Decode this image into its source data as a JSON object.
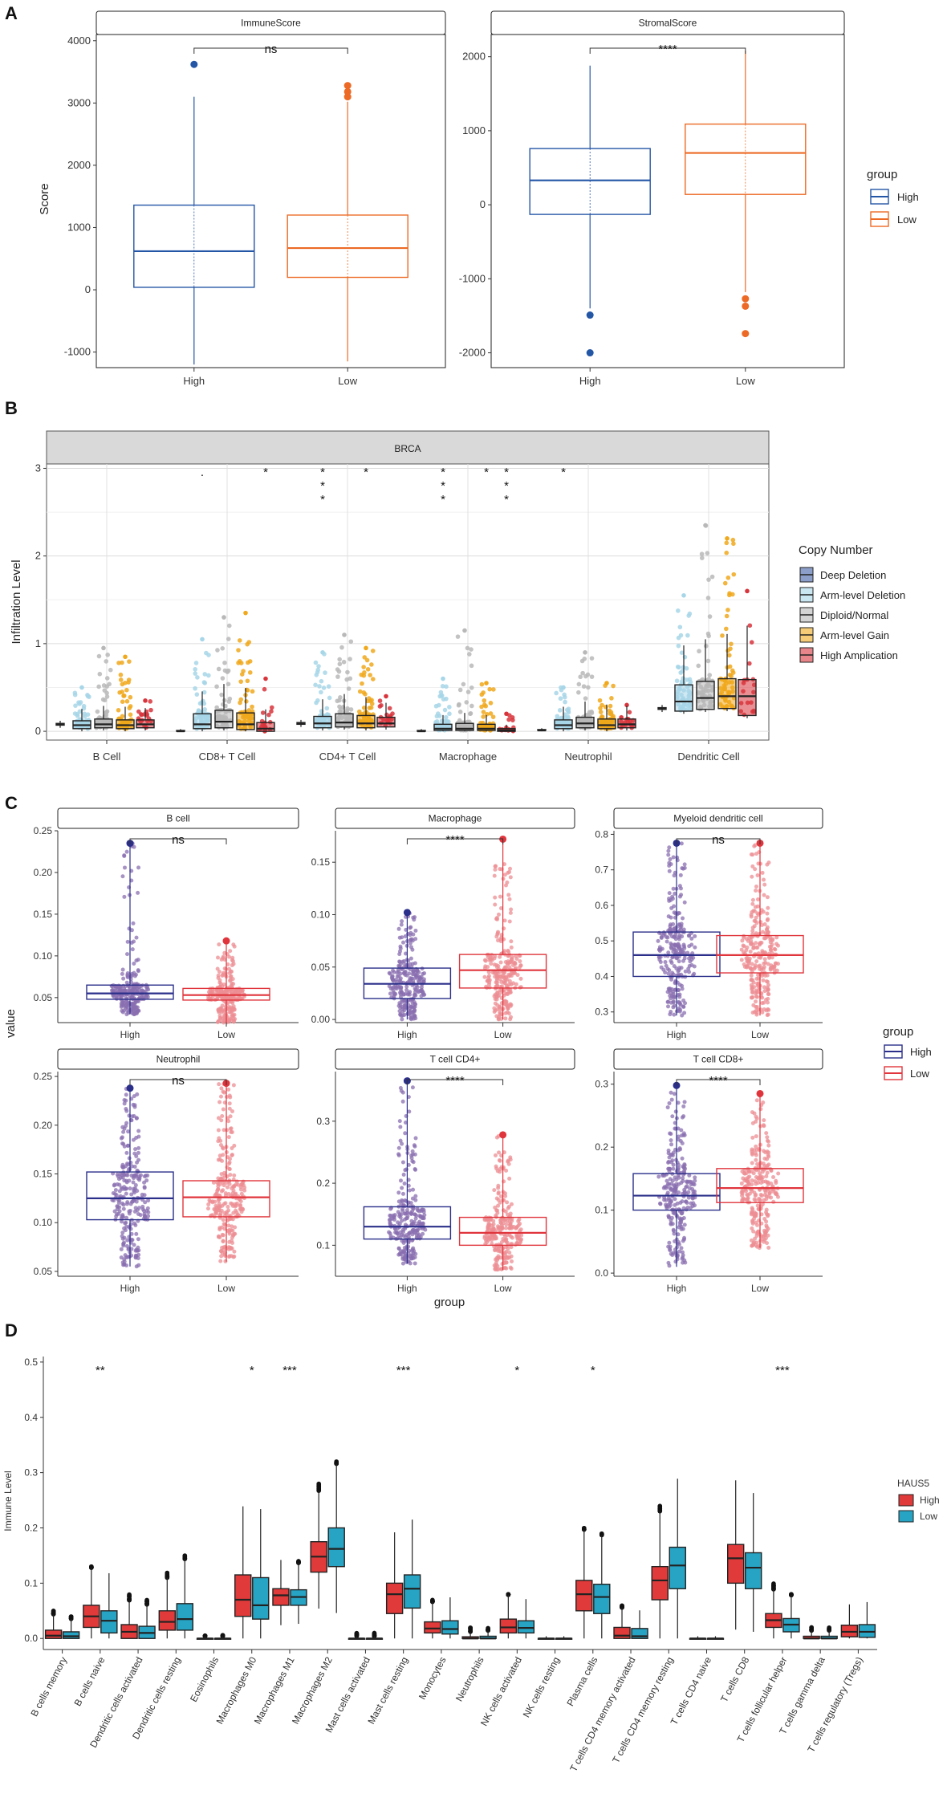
{
  "panels": {
    "a": "A",
    "b": "B",
    "c": "C",
    "d": "D"
  },
  "colors": {
    "high_a": "#2456a6",
    "low_a": "#ec6a25",
    "high_c": "#2b2f8a",
    "low_c": "#e0353c",
    "high_d": "#e03a3a",
    "low_d": "#27a4c4",
    "deep_deletion": "#3f5fa6",
    "arm_level_deletion": "#a7d6e8",
    "diploid_normal": "#b8b8b8",
    "arm_level_gain": "#f0a81c",
    "high_amplication": "#d8343c"
  },
  "panelA": {
    "y_title": "Score",
    "legend_title": "group",
    "legend_items": [
      "High",
      "Low"
    ],
    "facets": [
      {
        "title": "ImmuneScore",
        "sig": "ns",
        "ylim": [
          -1250,
          4100
        ],
        "ticks": [
          "-1000",
          "0",
          "1000",
          "2000",
          "3000",
          "4000"
        ],
        "tick_values": [
          -1000,
          0,
          1000,
          2000,
          3000,
          4000
        ],
        "categories": [
          "High",
          "Low"
        ]
      },
      {
        "title": "StromalScore",
        "sig": "****",
        "ylim": [
          -2200,
          2300
        ],
        "ticks": [
          "-2000",
          "-1000",
          "0",
          "1000",
          "2000"
        ],
        "tick_values": [
          -2000,
          -1000,
          0,
          1000,
          2000
        ],
        "categories": [
          "High",
          "Low"
        ]
      }
    ]
  },
  "panelB": {
    "facet_title": "BRCA",
    "y_title": "Infiltration Level",
    "ylim": [
      -0.1,
      3.05
    ],
    "ticks": [
      "0",
      "1",
      "2",
      "3"
    ],
    "tick_values": [
      0,
      1,
      2,
      3
    ],
    "categories": [
      "B Cell",
      "CD8+ T Cell",
      "CD4+ T Cell",
      "Macrophage",
      "Neutrophil",
      "Dendritic Cell"
    ],
    "legend_title": "Copy Number",
    "legend_items": [
      "Deep Deletion",
      "Arm-level Deletion",
      "Diploid/Normal",
      "Arm-level Gain",
      "High Amplication"
    ],
    "sig_marks": [
      {
        "cat": 1,
        "slot": 1,
        "text": "."
      },
      {
        "cat": 1,
        "slot": 4,
        "text": "*"
      },
      {
        "cat": 2,
        "slot": 1,
        "text": "*\n*\n*"
      },
      {
        "cat": 2,
        "slot": 3,
        "text": "*"
      },
      {
        "cat": 3,
        "slot": 1,
        "text": "*\n*\n*"
      },
      {
        "cat": 3,
        "slot": 3,
        "text": "*"
      },
      {
        "cat": 3,
        "slot": 4,
        "text": "*\n*\n*"
      },
      {
        "cat": 4,
        "slot": 1,
        "text": "*"
      }
    ]
  },
  "panelC": {
    "y_title": "value",
    "x_title": "group",
    "legend_title": "group",
    "legend_items": [
      "High",
      "Low"
    ],
    "categories": [
      "High",
      "Low"
    ],
    "facets": [
      {
        "title": "B cell",
        "sig": "ns",
        "ylim": [
          0.02,
          0.25
        ],
        "ticks": [
          "0.05",
          "0.10",
          "0.15",
          "0.20",
          "0.25"
        ],
        "tick_values": [
          0.05,
          0.1,
          0.15,
          0.2,
          0.25
        ]
      },
      {
        "title": "Macrophage",
        "sig": "****",
        "ylim": [
          -0.003,
          0.18
        ],
        "ticks": [
          "0.00",
          "0.05",
          "0.10",
          "0.15"
        ],
        "tick_values": [
          0.0,
          0.05,
          0.1,
          0.15
        ]
      },
      {
        "title": "Myeloid dendritic cell",
        "sig": "ns",
        "ylim": [
          0.27,
          0.81
        ],
        "ticks": [
          "0.3",
          "0.4",
          "0.5",
          "0.6",
          "0.7",
          "0.8"
        ],
        "tick_values": [
          0.3,
          0.4,
          0.5,
          0.6,
          0.7,
          0.8
        ]
      },
      {
        "title": "Neutrophil",
        "sig": "ns",
        "ylim": [
          0.045,
          0.255
        ],
        "ticks": [
          "0.05",
          "0.10",
          "0.15",
          "0.20",
          "0.25"
        ],
        "tick_values": [
          0.05,
          0.1,
          0.15,
          0.2,
          0.25
        ]
      },
      {
        "title": "T cell CD4+",
        "sig": "****",
        "ylim": [
          0.05,
          0.38
        ],
        "ticks": [
          "0.1",
          "0.2",
          "0.3"
        ],
        "tick_values": [
          0.1,
          0.2,
          0.3
        ]
      },
      {
        "title": "T cell CD8+",
        "sig": "****",
        "ylim": [
          -0.005,
          0.32
        ],
        "ticks": [
          "0.0",
          "0.1",
          "0.2",
          "0.3"
        ],
        "tick_values": [
          0.0,
          0.1,
          0.2,
          0.3
        ]
      }
    ]
  },
  "panelD": {
    "y_title": "Immune Level",
    "ylim": [
      -0.02,
      0.51
    ],
    "ticks": [
      "0.0",
      "0.1",
      "0.2",
      "0.3",
      "0.4",
      "0.5"
    ],
    "tick_values": [
      0.0,
      0.1,
      0.2,
      0.3,
      0.4,
      0.5
    ],
    "legend_title": "HAUS5",
    "legend_items": [
      "High",
      "Low"
    ],
    "categories": [
      "B cells memory",
      "B cells naive",
      "Dendritic cells activated",
      "Dendritic cells resting",
      "Eosinophils",
      "Macrophages M0",
      "Macrophages M1",
      "Macrophages M2",
      "Mast cells activated",
      "Mast cells resting",
      "Monocytes",
      "Neutrophils",
      "NK cells activated",
      "NK cells resting",
      "Plasma cells",
      "T cells CD4 memory activated",
      "T cells CD4 memory resting",
      "T cells CD4 naive",
      "T cells CD8",
      "T cells follicular helper",
      "T cells gamma delta",
      "T cells regulatory (Tregs)"
    ],
    "sig": [
      "",
      "**",
      "",
      "",
      "",
      "*",
      "***",
      "",
      "",
      "***",
      "",
      "",
      "*",
      "",
      "*",
      "",
      "",
      "",
      "",
      "***",
      "",
      ""
    ]
  },
  "chart_data": [
    {
      "type": "box",
      "panel": "A",
      "title": "ImmuneScore",
      "ylabel": "Score",
      "xlabel": "",
      "categories": [
        "High",
        "Low"
      ],
      "ylim": [
        -1250,
        4100
      ],
      "significance": "ns",
      "series": [
        {
          "name": "High",
          "min": -1200,
          "q1": 40,
          "median": 620,
          "q3": 1360,
          "max": 3100,
          "outliers": [
            3620
          ]
        },
        {
          "name": "Low",
          "min": -1150,
          "q1": 200,
          "median": 670,
          "q3": 1200,
          "max": 3020,
          "outliers": [
            3100,
            3180,
            3280
          ]
        }
      ]
    },
    {
      "type": "box",
      "panel": "A",
      "title": "StromalScore",
      "ylabel": "",
      "xlabel": "",
      "categories": [
        "High",
        "Low"
      ],
      "ylim": [
        -2200,
        2300
      ],
      "significance": "****",
      "series": [
        {
          "name": "High",
          "min": -1400,
          "q1": -130,
          "median": 330,
          "q3": 760,
          "max": 1880,
          "outliers": [
            -1490,
            -2000
          ]
        },
        {
          "name": "Low",
          "min": -1180,
          "q1": 140,
          "median": 700,
          "q3": 1090,
          "max": 2080,
          "outliers": [
            -1270,
            -1370,
            -1740
          ]
        }
      ]
    },
    {
      "type": "box",
      "panel": "B",
      "title": "BRCA",
      "ylabel": "Infiltration Level",
      "categories": [
        "B Cell",
        "CD8+ T Cell",
        "CD4+ T Cell",
        "Macrophage",
        "Neutrophil",
        "Dendritic Cell"
      ],
      "ylim": [
        -0.1,
        3.05
      ],
      "series": [
        {
          "name": "Deep Deletion",
          "q1": [
            0.07,
            0.0,
            0.08,
            0.0,
            0.01,
            0.25
          ],
          "median": [
            0.08,
            0.0,
            0.09,
            0.0,
            0.01,
            0.26
          ],
          "q3": [
            0.09,
            0.01,
            0.1,
            0.01,
            0.02,
            0.27
          ],
          "max": [
            0.09,
            0.01,
            0.1,
            0.01,
            0.02,
            0.27
          ]
        },
        {
          "name": "Arm-level Deletion",
          "q1": [
            0.03,
            0.03,
            0.04,
            0.01,
            0.03,
            0.23
          ],
          "median": [
            0.07,
            0.08,
            0.09,
            0.03,
            0.07,
            0.34
          ],
          "q3": [
            0.12,
            0.2,
            0.17,
            0.08,
            0.13,
            0.53
          ],
          "max": [
            0.5,
            1.05,
            0.9,
            0.6,
            0.5,
            1.55
          ]
        },
        {
          "name": "Diploid/Normal",
          "q1": [
            0.04,
            0.04,
            0.05,
            0.01,
            0.04,
            0.25
          ],
          "median": [
            0.08,
            0.11,
            0.1,
            0.03,
            0.09,
            0.38
          ],
          "q3": [
            0.14,
            0.24,
            0.2,
            0.09,
            0.16,
            0.57
          ],
          "max": [
            0.95,
            1.3,
            1.1,
            1.15,
            0.9,
            2.35
          ]
        },
        {
          "name": "Arm-level Gain",
          "q1": [
            0.03,
            0.02,
            0.04,
            0.01,
            0.03,
            0.26
          ],
          "median": [
            0.07,
            0.08,
            0.09,
            0.03,
            0.07,
            0.4
          ],
          "q3": [
            0.13,
            0.21,
            0.18,
            0.08,
            0.14,
            0.6
          ],
          "max": [
            0.85,
            1.35,
            0.95,
            0.55,
            0.55,
            2.2
          ]
        },
        {
          "name": "High Amplication",
          "q1": [
            0.04,
            0.0,
            0.05,
            0.0,
            0.04,
            0.18
          ],
          "median": [
            0.08,
            0.03,
            0.09,
            0.01,
            0.08,
            0.4
          ],
          "q3": [
            0.13,
            0.1,
            0.16,
            0.03,
            0.14,
            0.59
          ],
          "max": [
            0.35,
            0.6,
            0.4,
            0.2,
            0.3,
            1.6
          ]
        }
      ]
    },
    {
      "type": "box",
      "panel": "C",
      "ylabel": "value",
      "xlabel": "group",
      "categories": [
        "High",
        "Low"
      ],
      "facets": [
        {
          "title": "B cell",
          "significance": "ns",
          "series": [
            {
              "name": "High",
              "min": 0.03,
              "q1": 0.048,
              "median": 0.055,
              "q3": 0.065,
              "max": 0.235
            },
            {
              "name": "Low",
              "min": 0.02,
              "q1": 0.047,
              "median": 0.053,
              "q3": 0.061,
              "max": 0.118
            }
          ]
        },
        {
          "title": "Macrophage",
          "significance": "****",
          "series": [
            {
              "name": "High",
              "min": 0.0,
              "q1": 0.02,
              "median": 0.034,
              "q3": 0.049,
              "max": 0.102
            },
            {
              "name": "Low",
              "min": 0.0,
              "q1": 0.03,
              "median": 0.047,
              "q3": 0.062,
              "max": 0.172
            }
          ]
        },
        {
          "title": "Myeloid dendritic cell",
          "significance": "ns",
          "series": [
            {
              "name": "High",
              "min": 0.29,
              "q1": 0.4,
              "median": 0.46,
              "q3": 0.525,
              "max": 0.775
            },
            {
              "name": "Low",
              "min": 0.29,
              "q1": 0.41,
              "median": 0.46,
              "q3": 0.515,
              "max": 0.775
            }
          ]
        },
        {
          "title": "Neutrophil",
          "significance": "ns",
          "series": [
            {
              "name": "High",
              "min": 0.055,
              "q1": 0.103,
              "median": 0.125,
              "q3": 0.152,
              "max": 0.238
            },
            {
              "name": "Low",
              "min": 0.06,
              "q1": 0.106,
              "median": 0.126,
              "q3": 0.143,
              "max": 0.243
            }
          ]
        },
        {
          "title": "T cell CD4+",
          "significance": "****",
          "series": [
            {
              "name": "High",
              "min": 0.07,
              "q1": 0.11,
              "median": 0.13,
              "q3": 0.162,
              "max": 0.365
            },
            {
              "name": "Low",
              "min": 0.06,
              "q1": 0.1,
              "median": 0.12,
              "q3": 0.145,
              "max": 0.278
            }
          ]
        },
        {
          "title": "T cell CD8+",
          "significance": "****",
          "series": [
            {
              "name": "High",
              "min": 0.01,
              "q1": 0.1,
              "median": 0.123,
              "q3": 0.158,
              "max": 0.298
            },
            {
              "name": "Low",
              "min": 0.04,
              "q1": 0.112,
              "median": 0.135,
              "q3": 0.166,
              "max": 0.285
            }
          ]
        }
      ]
    },
    {
      "type": "box",
      "panel": "D",
      "ylabel": "Immune Level",
      "legend_title": "HAUS5",
      "ylim": [
        -0.02,
        0.51
      ],
      "categories": [
        "B cells memory",
        "B cells naive",
        "Dendritic cells activated",
        "Dendritic cells resting",
        "Eosinophils",
        "Macrophages M0",
        "Macrophages M1",
        "Macrophages M2",
        "Mast cells activated",
        "Mast cells resting",
        "Monocytes",
        "Neutrophils",
        "NK cells activated",
        "NK cells resting",
        "Plasma cells",
        "T cells CD4 memory activated",
        "T cells CD4 memory resting",
        "T cells CD4 naive",
        "T cells CD8",
        "T cells follicular helper",
        "T cells gamma delta",
        "T cells regulatory (Tregs)"
      ],
      "series": [
        {
          "name": "High",
          "q1": [
            0.0,
            0.02,
            0.0,
            0.015,
            0.0,
            0.04,
            0.06,
            0.12,
            0.0,
            0.045,
            0.01,
            0.0,
            0.01,
            0.0,
            0.05,
            0.0,
            0.07,
            0.0,
            0.1,
            0.02,
            0.0,
            0.003
          ],
          "median": [
            0.005,
            0.04,
            0.012,
            0.03,
            0.0,
            0.07,
            0.078,
            0.148,
            0.0,
            0.08,
            0.018,
            0.0,
            0.02,
            0.0,
            0.08,
            0.005,
            0.105,
            0.0,
            0.145,
            0.033,
            0.0,
            0.012
          ],
          "q3": [
            0.015,
            0.06,
            0.025,
            0.05,
            0.0,
            0.115,
            0.09,
            0.175,
            0.0,
            0.1,
            0.03,
            0.003,
            0.035,
            0.0,
            0.105,
            0.02,
            0.13,
            0.0,
            0.17,
            0.045,
            0.004,
            0.024
          ],
          "max": [
            0.05,
            0.13,
            0.08,
            0.12,
            0.005,
            0.22,
            0.14,
            0.28,
            0.01,
            0.17,
            0.07,
            0.02,
            0.08,
            0.0,
            0.2,
            0.06,
            0.24,
            0.0,
            0.25,
            0.1,
            0.02,
            0.06
          ]
        },
        {
          "name": "Low",
          "q1": [
            0.0,
            0.01,
            0.0,
            0.015,
            0.0,
            0.035,
            0.06,
            0.13,
            0.0,
            0.055,
            0.008,
            0.0,
            0.01,
            0.0,
            0.045,
            0.0,
            0.09,
            0.0,
            0.09,
            0.012,
            0.0,
            0.002
          ],
          "median": [
            0.004,
            0.032,
            0.01,
            0.035,
            0.0,
            0.06,
            0.075,
            0.162,
            0.0,
            0.09,
            0.017,
            0.0,
            0.019,
            0.0,
            0.075,
            0.004,
            0.132,
            0.0,
            0.128,
            0.025,
            0.0,
            0.012
          ],
          "q3": [
            0.012,
            0.05,
            0.022,
            0.063,
            0.0,
            0.11,
            0.088,
            0.2,
            0.0,
            0.115,
            0.032,
            0.004,
            0.032,
            0.0,
            0.098,
            0.018,
            0.165,
            0.0,
            0.155,
            0.036,
            0.004,
            0.025
          ],
          "max": [
            0.04,
            0.1,
            0.07,
            0.15,
            0.006,
            0.22,
            0.14,
            0.32,
            0.01,
            0.2,
            0.07,
            0.02,
            0.07,
            0.0,
            0.19,
            0.05,
            0.28,
            0.0,
            0.24,
            0.08,
            0.02,
            0.06
          ]
        }
      ]
    }
  ]
}
